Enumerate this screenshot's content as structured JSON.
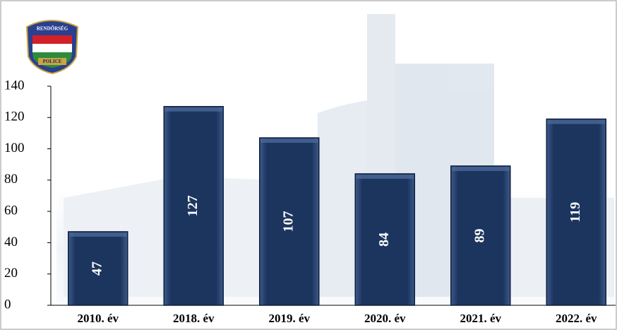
{
  "logo": {
    "top": "RENDŐRSÉG",
    "bottom": "POLICE"
  },
  "chart_data": {
    "type": "bar",
    "categories": [
      "2010. év",
      "2018. év",
      "2019. év",
      "2020. év",
      "2021. év",
      "2022. év"
    ],
    "values": [
      47,
      127,
      107,
      84,
      89,
      119
    ],
    "color": "#1f3a66",
    "ylim": [
      0,
      140
    ],
    "yticks": [
      0,
      20,
      40,
      60,
      80,
      100,
      120,
      140
    ],
    "grid": false
  }
}
